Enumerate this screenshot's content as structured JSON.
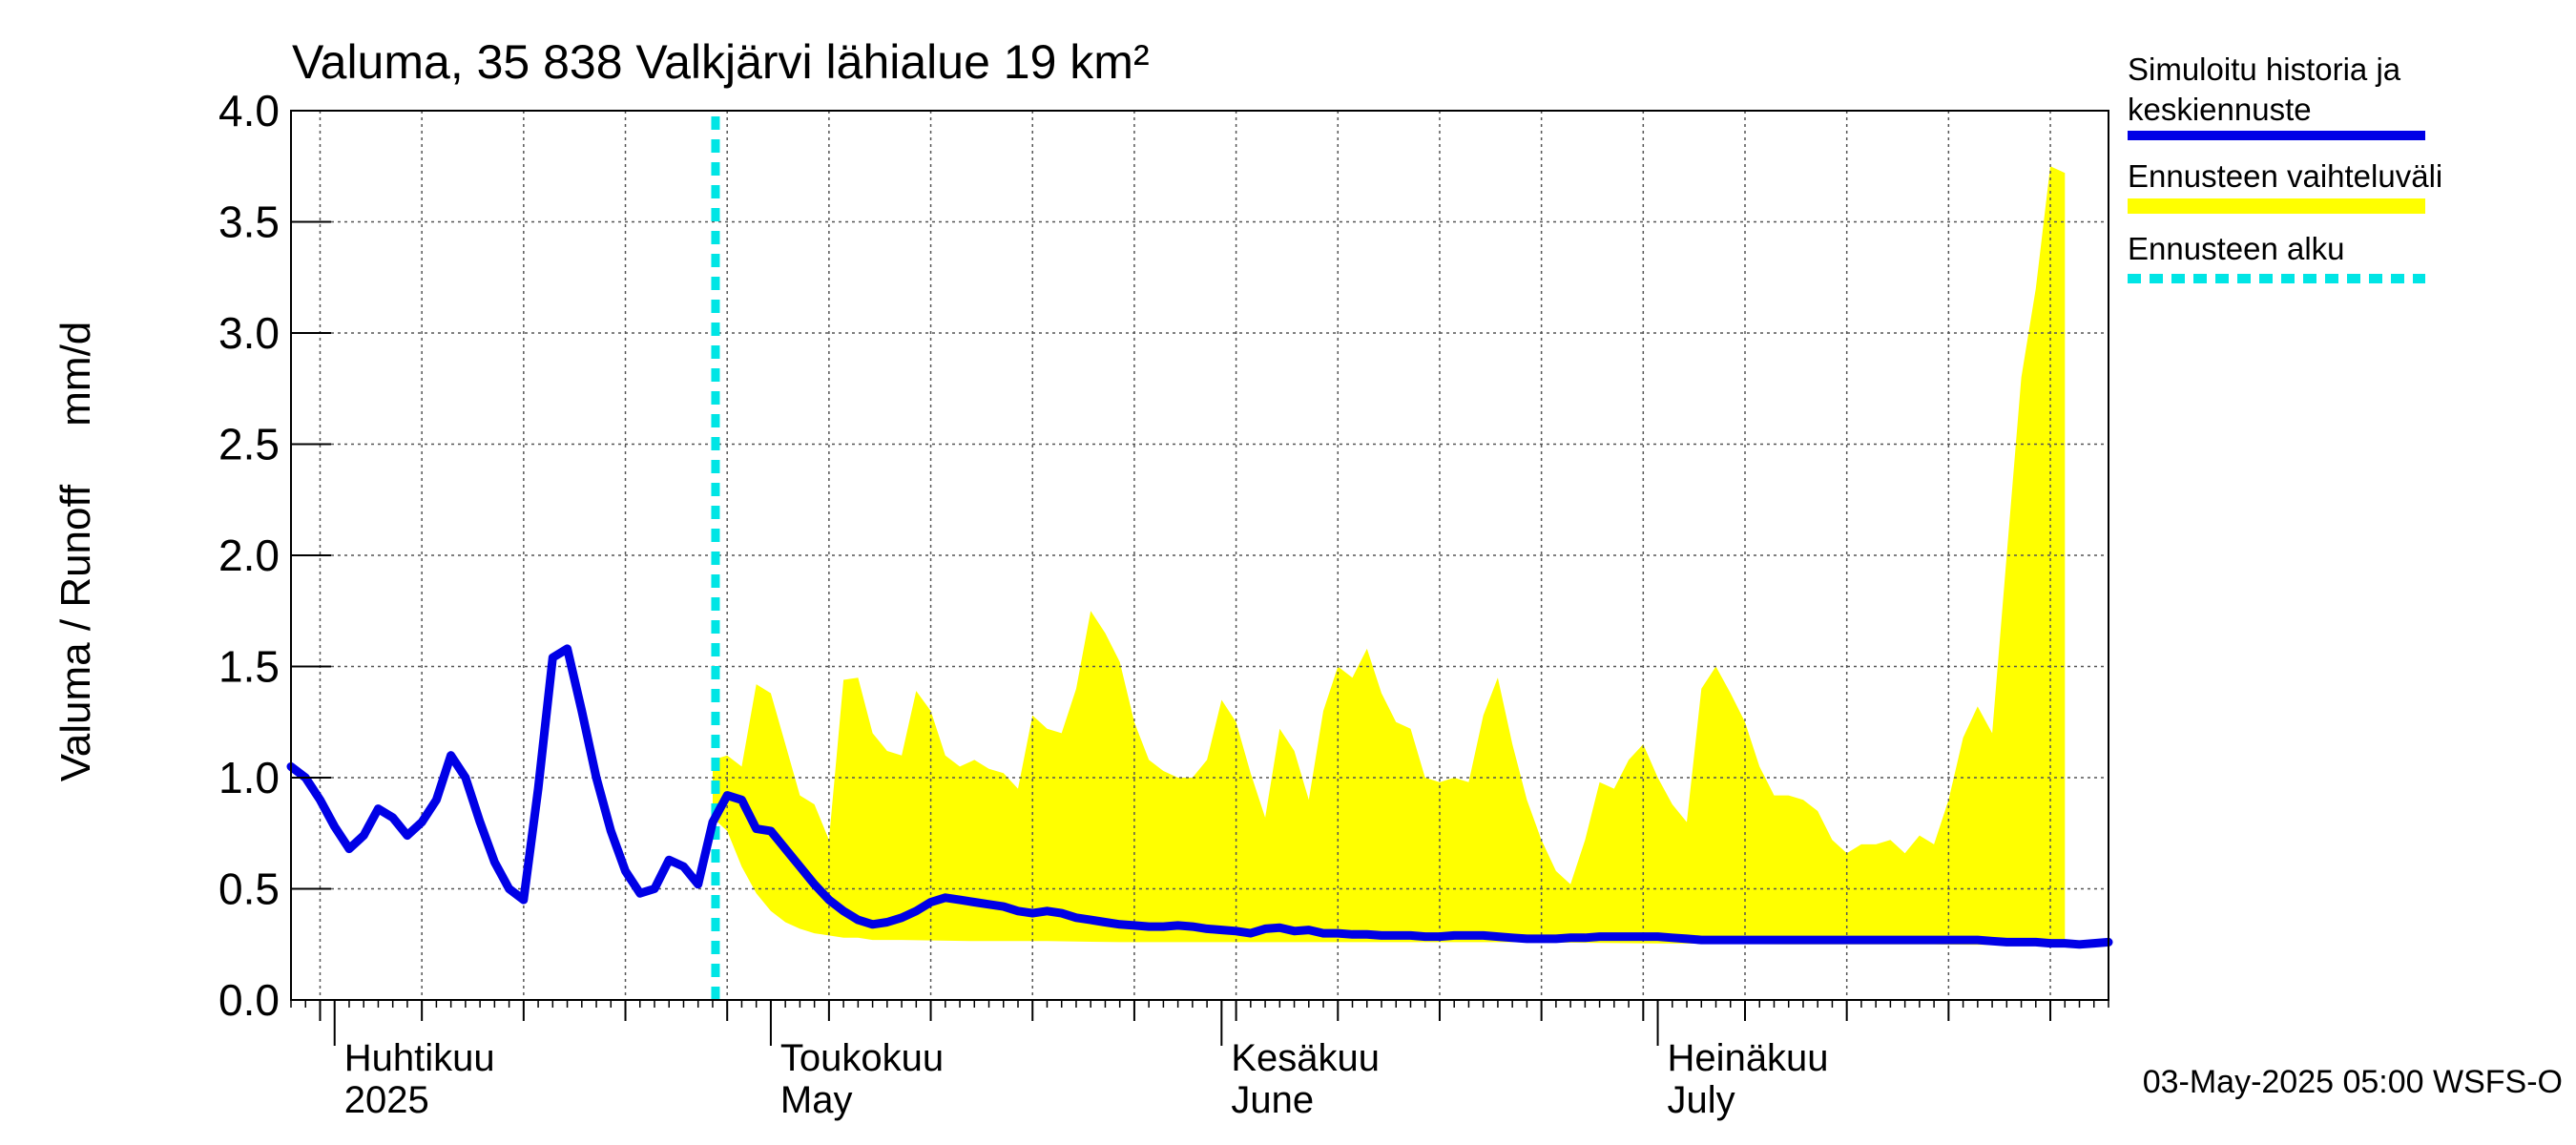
{
  "chart_data": {
    "type": "line",
    "title": "Valuma, 35 838 Valkjärvi lähialue 19 km²",
    "ylabel": "Valuma / Runoff     mm/d",
    "ylim": [
      0,
      4.0
    ],
    "y_ticks": [
      "0.0",
      "0.5",
      "1.0",
      "1.5",
      "2.0",
      "2.5",
      "3.0",
      "3.5",
      "4.0"
    ],
    "x_start": "2025-03-29",
    "x_end": "2025-08-01",
    "grid": true,
    "legend_position": "right",
    "month_labels": [
      {
        "date": "2025-04-01",
        "line1": "Huhtikuu",
        "line2": "2025"
      },
      {
        "date": "2025-05-01",
        "line1": "Toukokuu",
        "line2": "May"
      },
      {
        "date": "2025-06-01",
        "line1": "Kesäkuu",
        "line2": "June"
      },
      {
        "date": "2025-07-01",
        "line1": "Heinäkuu",
        "line2": "July"
      }
    ],
    "forecast_start": "2025-04-27",
    "series": [
      {
        "name": "Simuloitu historia ja keskiennuste",
        "color": "#0000e6",
        "points": [
          [
            "2025-03-29",
            1.05
          ],
          [
            "2025-03-30",
            1.0
          ],
          [
            "2025-03-31",
            0.9
          ],
          [
            "2025-04-01",
            0.78
          ],
          [
            "2025-04-02",
            0.68
          ],
          [
            "2025-04-03",
            0.74
          ],
          [
            "2025-04-04",
            0.86
          ],
          [
            "2025-04-05",
            0.82
          ],
          [
            "2025-04-06",
            0.74
          ],
          [
            "2025-04-07",
            0.8
          ],
          [
            "2025-04-08",
            0.9
          ],
          [
            "2025-04-09",
            1.1
          ],
          [
            "2025-04-10",
            1.0
          ],
          [
            "2025-04-11",
            0.8
          ],
          [
            "2025-04-12",
            0.62
          ],
          [
            "2025-04-13",
            0.5
          ],
          [
            "2025-04-14",
            0.45
          ],
          [
            "2025-04-15",
            0.95
          ],
          [
            "2025-04-16",
            1.54
          ],
          [
            "2025-04-17",
            1.58
          ],
          [
            "2025-04-18",
            1.3
          ],
          [
            "2025-04-19",
            1.0
          ],
          [
            "2025-04-20",
            0.76
          ],
          [
            "2025-04-21",
            0.58
          ],
          [
            "2025-04-22",
            0.48
          ],
          [
            "2025-04-23",
            0.5
          ],
          [
            "2025-04-24",
            0.63
          ],
          [
            "2025-04-25",
            0.6
          ],
          [
            "2025-04-26",
            0.52
          ],
          [
            "2025-04-27",
            0.8
          ],
          [
            "2025-04-28",
            0.92
          ],
          [
            "2025-04-29",
            0.9
          ],
          [
            "2025-04-30",
            0.77
          ],
          [
            "2025-05-01",
            0.76
          ],
          [
            "2025-05-02",
            0.68
          ],
          [
            "2025-05-03",
            0.6
          ],
          [
            "2025-05-04",
            0.52
          ],
          [
            "2025-05-05",
            0.45
          ],
          [
            "2025-05-06",
            0.4
          ],
          [
            "2025-05-07",
            0.36
          ],
          [
            "2025-05-08",
            0.34
          ],
          [
            "2025-05-09",
            0.35
          ],
          [
            "2025-05-10",
            0.37
          ],
          [
            "2025-05-11",
            0.4
          ],
          [
            "2025-05-12",
            0.44
          ],
          [
            "2025-05-13",
            0.46
          ],
          [
            "2025-05-14",
            0.45
          ],
          [
            "2025-05-15",
            0.44
          ],
          [
            "2025-05-16",
            0.43
          ],
          [
            "2025-05-17",
            0.42
          ],
          [
            "2025-05-18",
            0.4
          ],
          [
            "2025-05-19",
            0.39
          ],
          [
            "2025-05-20",
            0.4
          ],
          [
            "2025-05-21",
            0.39
          ],
          [
            "2025-05-22",
            0.37
          ],
          [
            "2025-05-23",
            0.36
          ],
          [
            "2025-05-24",
            0.35
          ],
          [
            "2025-05-25",
            0.34
          ],
          [
            "2025-05-26",
            0.335
          ],
          [
            "2025-05-27",
            0.33
          ],
          [
            "2025-05-28",
            0.33
          ],
          [
            "2025-05-29",
            0.335
          ],
          [
            "2025-05-30",
            0.33
          ],
          [
            "2025-05-31",
            0.32
          ],
          [
            "2025-06-01",
            0.315
          ],
          [
            "2025-06-02",
            0.31
          ],
          [
            "2025-06-03",
            0.3
          ],
          [
            "2025-06-04",
            0.32
          ],
          [
            "2025-06-05",
            0.325
          ],
          [
            "2025-06-06",
            0.31
          ],
          [
            "2025-06-07",
            0.315
          ],
          [
            "2025-06-08",
            0.3
          ],
          [
            "2025-06-09",
            0.3
          ],
          [
            "2025-06-10",
            0.295
          ],
          [
            "2025-06-11",
            0.295
          ],
          [
            "2025-06-12",
            0.29
          ],
          [
            "2025-06-13",
            0.29
          ],
          [
            "2025-06-14",
            0.29
          ],
          [
            "2025-06-15",
            0.285
          ],
          [
            "2025-06-16",
            0.285
          ],
          [
            "2025-06-17",
            0.29
          ],
          [
            "2025-06-18",
            0.29
          ],
          [
            "2025-06-19",
            0.29
          ],
          [
            "2025-06-20",
            0.285
          ],
          [
            "2025-06-21",
            0.28
          ],
          [
            "2025-06-22",
            0.275
          ],
          [
            "2025-06-23",
            0.275
          ],
          [
            "2025-06-24",
            0.275
          ],
          [
            "2025-06-25",
            0.28
          ],
          [
            "2025-06-26",
            0.28
          ],
          [
            "2025-06-27",
            0.285
          ],
          [
            "2025-06-28",
            0.285
          ],
          [
            "2025-06-29",
            0.285
          ],
          [
            "2025-06-30",
            0.285
          ],
          [
            "2025-07-01",
            0.285
          ],
          [
            "2025-07-02",
            0.28
          ],
          [
            "2025-07-03",
            0.275
          ],
          [
            "2025-07-04",
            0.27
          ],
          [
            "2025-07-05",
            0.27
          ],
          [
            "2025-07-06",
            0.27
          ],
          [
            "2025-07-07",
            0.27
          ],
          [
            "2025-07-08",
            0.27
          ],
          [
            "2025-07-09",
            0.27
          ],
          [
            "2025-07-10",
            0.27
          ],
          [
            "2025-07-11",
            0.27
          ],
          [
            "2025-07-12",
            0.27
          ],
          [
            "2025-07-13",
            0.27
          ],
          [
            "2025-07-14",
            0.27
          ],
          [
            "2025-07-15",
            0.27
          ],
          [
            "2025-07-16",
            0.27
          ],
          [
            "2025-07-17",
            0.27
          ],
          [
            "2025-07-18",
            0.27
          ],
          [
            "2025-07-19",
            0.27
          ],
          [
            "2025-07-20",
            0.27
          ],
          [
            "2025-07-21",
            0.27
          ],
          [
            "2025-07-22",
            0.27
          ],
          [
            "2025-07-23",
            0.27
          ],
          [
            "2025-07-24",
            0.265
          ],
          [
            "2025-07-25",
            0.26
          ],
          [
            "2025-07-26",
            0.26
          ],
          [
            "2025-07-27",
            0.26
          ],
          [
            "2025-07-28",
            0.255
          ],
          [
            "2025-07-29",
            0.255
          ],
          [
            "2025-07-30",
            0.25
          ],
          [
            "2025-07-31",
            0.255
          ],
          [
            "2025-08-01",
            0.26
          ]
        ]
      }
    ],
    "range_band": {
      "name": "Ennusteen vaihteluväli",
      "color": "#ffff00",
      "upper": [
        [
          "2025-04-27",
          1.08
        ],
        [
          "2025-04-28",
          1.1
        ],
        [
          "2025-04-29",
          1.05
        ],
        [
          "2025-04-30",
          1.42
        ],
        [
          "2025-05-01",
          1.38
        ],
        [
          "2025-05-02",
          1.15
        ],
        [
          "2025-05-03",
          0.92
        ],
        [
          "2025-05-04",
          0.88
        ],
        [
          "2025-05-05",
          0.72
        ],
        [
          "2025-05-06",
          1.44
        ],
        [
          "2025-05-07",
          1.45
        ],
        [
          "2025-05-08",
          1.2
        ],
        [
          "2025-05-09",
          1.12
        ],
        [
          "2025-05-10",
          1.1
        ],
        [
          "2025-05-11",
          1.39
        ],
        [
          "2025-05-12",
          1.3
        ],
        [
          "2025-05-13",
          1.1
        ],
        [
          "2025-05-14",
          1.05
        ],
        [
          "2025-05-15",
          1.08
        ],
        [
          "2025-05-16",
          1.04
        ],
        [
          "2025-05-17",
          1.02
        ],
        [
          "2025-05-18",
          0.95
        ],
        [
          "2025-05-19",
          1.28
        ],
        [
          "2025-05-20",
          1.22
        ],
        [
          "2025-05-21",
          1.2
        ],
        [
          "2025-05-22",
          1.4
        ],
        [
          "2025-05-23",
          1.75
        ],
        [
          "2025-05-24",
          1.65
        ],
        [
          "2025-05-25",
          1.52
        ],
        [
          "2025-05-26",
          1.25
        ],
        [
          "2025-05-27",
          1.08
        ],
        [
          "2025-05-28",
          1.03
        ],
        [
          "2025-05-29",
          1.0
        ],
        [
          "2025-05-30",
          1.0
        ],
        [
          "2025-05-31",
          1.08
        ],
        [
          "2025-06-01",
          1.35
        ],
        [
          "2025-06-02",
          1.25
        ],
        [
          "2025-06-03",
          1.02
        ],
        [
          "2025-06-04",
          0.82
        ],
        [
          "2025-06-05",
          1.22
        ],
        [
          "2025-06-06",
          1.12
        ],
        [
          "2025-06-07",
          0.9
        ],
        [
          "2025-06-08",
          1.3
        ],
        [
          "2025-06-09",
          1.5
        ],
        [
          "2025-06-10",
          1.45
        ],
        [
          "2025-06-11",
          1.58
        ],
        [
          "2025-06-12",
          1.38
        ],
        [
          "2025-06-13",
          1.25
        ],
        [
          "2025-06-14",
          1.22
        ],
        [
          "2025-06-15",
          1.0
        ],
        [
          "2025-06-16",
          0.98
        ],
        [
          "2025-06-17",
          1.0
        ],
        [
          "2025-06-18",
          0.98
        ],
        [
          "2025-06-19",
          1.28
        ],
        [
          "2025-06-20",
          1.45
        ],
        [
          "2025-06-21",
          1.15
        ],
        [
          "2025-06-22",
          0.9
        ],
        [
          "2025-06-23",
          0.72
        ],
        [
          "2025-06-24",
          0.58
        ],
        [
          "2025-06-25",
          0.52
        ],
        [
          "2025-06-26",
          0.72
        ],
        [
          "2025-06-27",
          0.98
        ],
        [
          "2025-06-28",
          0.95
        ],
        [
          "2025-06-29",
          1.08
        ],
        [
          "2025-06-30",
          1.15
        ],
        [
          "2025-07-01",
          1.0
        ],
        [
          "2025-07-02",
          0.88
        ],
        [
          "2025-07-03",
          0.8
        ],
        [
          "2025-07-04",
          1.4
        ],
        [
          "2025-07-05",
          1.5
        ],
        [
          "2025-07-06",
          1.38
        ],
        [
          "2025-07-07",
          1.25
        ],
        [
          "2025-07-08",
          1.05
        ],
        [
          "2025-07-09",
          0.92
        ],
        [
          "2025-07-10",
          0.92
        ],
        [
          "2025-07-11",
          0.9
        ],
        [
          "2025-07-12",
          0.85
        ],
        [
          "2025-07-13",
          0.72
        ],
        [
          "2025-07-14",
          0.66
        ],
        [
          "2025-07-15",
          0.7
        ],
        [
          "2025-07-16",
          0.7
        ],
        [
          "2025-07-17",
          0.72
        ],
        [
          "2025-07-18",
          0.66
        ],
        [
          "2025-07-19",
          0.74
        ],
        [
          "2025-07-20",
          0.7
        ],
        [
          "2025-07-21",
          0.9
        ],
        [
          "2025-07-22",
          1.18
        ],
        [
          "2025-07-23",
          1.32
        ],
        [
          "2025-07-24",
          1.2
        ],
        [
          "2025-07-25",
          2.0
        ],
        [
          "2025-07-26",
          2.8
        ],
        [
          "2025-07-27",
          3.2
        ],
        [
          "2025-07-28",
          3.75
        ],
        [
          "2025-07-29",
          3.72
        ]
      ],
      "lower": [
        [
          "2025-04-27",
          0.82
        ],
        [
          "2025-04-28",
          0.76
        ],
        [
          "2025-04-29",
          0.6
        ],
        [
          "2025-04-30",
          0.48
        ],
        [
          "2025-05-01",
          0.4
        ],
        [
          "2025-05-02",
          0.35
        ],
        [
          "2025-05-03",
          0.32
        ],
        [
          "2025-05-04",
          0.3
        ],
        [
          "2025-05-05",
          0.29
        ],
        [
          "2025-05-06",
          0.28
        ],
        [
          "2025-05-07",
          0.28
        ],
        [
          "2025-05-08",
          0.27
        ],
        [
          "2025-05-10",
          0.27
        ],
        [
          "2025-05-15",
          0.265
        ],
        [
          "2025-05-20",
          0.265
        ],
        [
          "2025-05-25",
          0.26
        ],
        [
          "2025-05-31",
          0.26
        ],
        [
          "2025-06-10",
          0.26
        ],
        [
          "2025-06-20",
          0.26
        ],
        [
          "2025-06-30",
          0.255
        ],
        [
          "2025-07-10",
          0.25
        ],
        [
          "2025-07-20",
          0.25
        ],
        [
          "2025-07-29",
          0.245
        ]
      ]
    },
    "legend": [
      {
        "line1": "Simuloitu historia ja",
        "line2": "keskiennuste",
        "color": "#0000e6",
        "style": "solid"
      },
      {
        "line1": "Ennusteen vaihteluväli",
        "line2": "",
        "color": "#ffff00",
        "style": "solid"
      },
      {
        "line1": "Ennusteen alku",
        "line2": "",
        "color": "#00e5e5",
        "style": "dashed"
      }
    ],
    "footer": "03-May-2025 05:00 WSFS-O"
  }
}
